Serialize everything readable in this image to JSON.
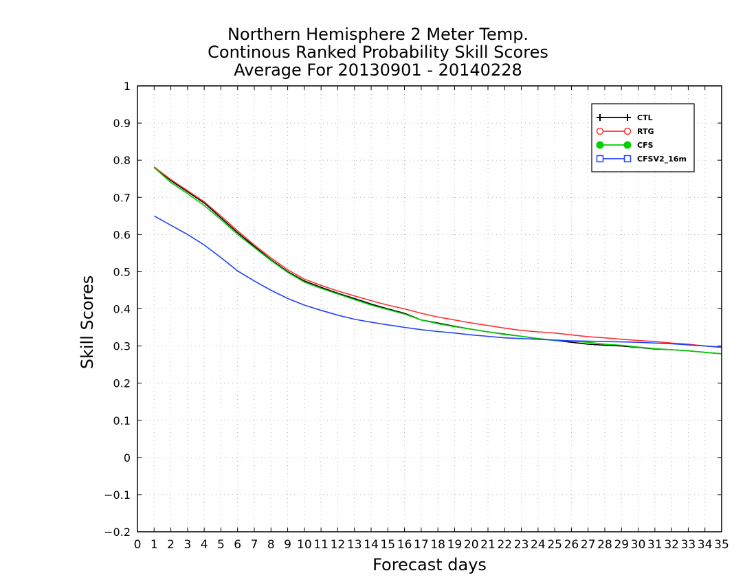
{
  "chart_data": {
    "type": "line",
    "title": [
      "Northern Hemisphere 2 Meter Temp.",
      "Continous Ranked Probability Skill Scores",
      "Average For 20130901 - 20140228"
    ],
    "xlabel": "Forecast days",
    "ylabel": "Skill Scores",
    "xlim": [
      0,
      35
    ],
    "ylim": [
      -0.2,
      1
    ],
    "xticks": [
      0,
      1,
      2,
      3,
      4,
      5,
      6,
      7,
      8,
      9,
      10,
      11,
      12,
      13,
      14,
      15,
      16,
      17,
      18,
      19,
      20,
      21,
      22,
      23,
      24,
      25,
      26,
      27,
      28,
      29,
      30,
      31,
      32,
      33,
      34,
      35
    ],
    "yticks": [
      -0.2,
      -0.1,
      0,
      0.1,
      0.2,
      0.3,
      0.4,
      0.5,
      0.6,
      0.7,
      0.8,
      0.9,
      1
    ],
    "ytick_labels": [
      "−0.2",
      "−0.1",
      "0",
      "0.1",
      "0.2",
      "0.3",
      "0.4",
      "0.5",
      "0.6",
      "0.7",
      "0.8",
      "0.9",
      "1"
    ],
    "grid": true,
    "legend_position": "top-right",
    "x": [
      1,
      2,
      3,
      4,
      5,
      6,
      7,
      8,
      9,
      10,
      11,
      12,
      13,
      14,
      15,
      16,
      17,
      18,
      19,
      20,
      21,
      22,
      23,
      24,
      25,
      26,
      27,
      28,
      29,
      30,
      31,
      32,
      33,
      34,
      35
    ],
    "series": [
      {
        "name": "CTL",
        "color": "#000000",
        "marker": "plus",
        "values": [
          0.782,
          0.745,
          0.715,
          0.685,
          0.645,
          0.605,
          0.568,
          0.532,
          0.5,
          0.475,
          0.458,
          0.442,
          0.428,
          0.413,
          0.4,
          0.388,
          0.37,
          0.362,
          0.353,
          0.345,
          0.338,
          0.332,
          0.326,
          0.32,
          0.315,
          0.31,
          0.305,
          0.302,
          0.3,
          0.296,
          0.292,
          0.29,
          0.287,
          0.283,
          0.279
        ]
      },
      {
        "name": "RTG",
        "color": "#ff3030",
        "marker": "open-circle",
        "values": [
          0.782,
          0.748,
          0.718,
          0.688,
          0.65,
          0.61,
          0.572,
          0.537,
          0.505,
          0.48,
          0.463,
          0.448,
          0.435,
          0.422,
          0.41,
          0.4,
          0.388,
          0.378,
          0.37,
          0.362,
          0.355,
          0.348,
          0.342,
          0.338,
          0.335,
          0.33,
          0.325,
          0.322,
          0.318,
          0.315,
          0.312,
          0.308,
          0.305,
          0.3,
          0.296
        ]
      },
      {
        "name": "CFS",
        "color": "#00d000",
        "marker": "filled-circle",
        "values": [
          0.78,
          0.74,
          0.71,
          0.678,
          0.64,
          0.6,
          0.565,
          0.53,
          0.498,
          0.472,
          0.455,
          0.44,
          0.425,
          0.41,
          0.398,
          0.386,
          0.37,
          0.36,
          0.352,
          0.345,
          0.338,
          0.331,
          0.326,
          0.32,
          0.315,
          0.313,
          0.31,
          0.305,
          0.302,
          0.297,
          0.293,
          0.29,
          0.287,
          0.283,
          0.279
        ]
      },
      {
        "name": "CFSV2_16m",
        "color": "#2040ff",
        "marker": "open-square",
        "values": [
          0.65,
          0.625,
          0.6,
          0.572,
          0.538,
          0.502,
          0.475,
          0.45,
          0.428,
          0.41,
          0.396,
          0.383,
          0.372,
          0.364,
          0.357,
          0.35,
          0.344,
          0.339,
          0.335,
          0.33,
          0.326,
          0.322,
          0.32,
          0.318,
          0.316,
          0.314,
          0.313,
          0.312,
          0.311,
          0.31,
          0.308,
          0.306,
          0.303,
          0.3,
          0.297
        ]
      }
    ]
  }
}
